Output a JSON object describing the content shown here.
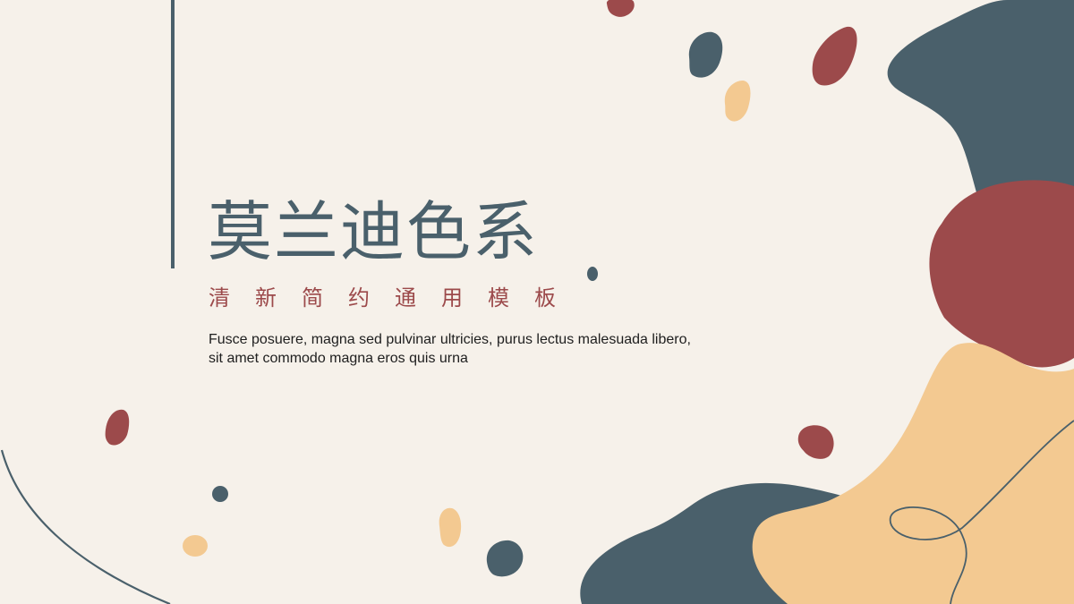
{
  "slide": {
    "title": "莫兰迪色系",
    "subtitle": "清新简约通用模板",
    "body": "Fusce posuere, magna sed pulvinar ultricies, purus lectus malesuada libero, sit amet commodo magna eros quis urna"
  },
  "palette": {
    "background": "#f6f1ea",
    "slate": "#4a606b",
    "brick": "#9c4a4b",
    "peach": "#f3c991",
    "text": "#1e1e1e"
  }
}
